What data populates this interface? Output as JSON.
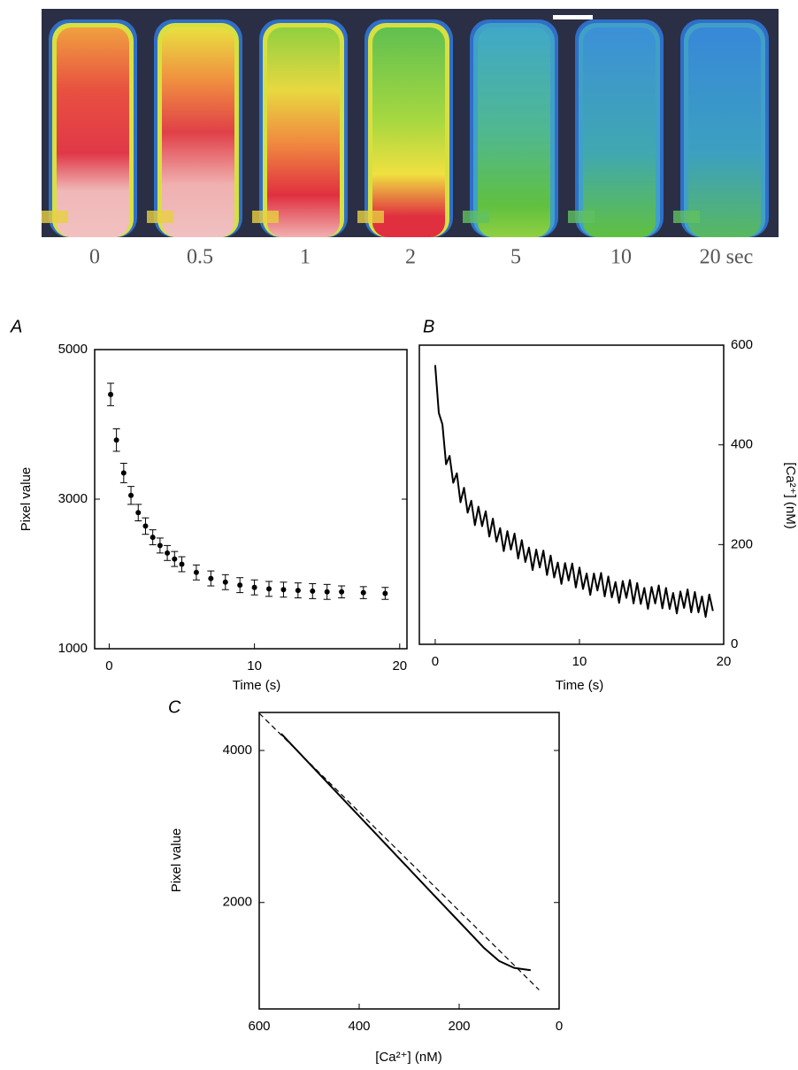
{
  "image_strip": {
    "labels": [
      "0",
      "0.5",
      "1",
      "2",
      "5",
      "10",
      "20 sec"
    ]
  },
  "chart_data": [
    {
      "type": "scatter",
      "panel": "A",
      "x_label": "Time (s)",
      "y_label": "Pixel value",
      "color": "#000000",
      "xlim": [
        -1,
        20.5
      ],
      "xticks": [
        0,
        10,
        20
      ],
      "ylim": [
        1000,
        5000
      ],
      "yticks": [
        1000,
        3000,
        5000
      ],
      "x": [
        0.1,
        0.5,
        1,
        1.5,
        2,
        2.5,
        3,
        3.5,
        4,
        4.5,
        5,
        6,
        7,
        8,
        9,
        10,
        11,
        12,
        13,
        14,
        15,
        16,
        17.5,
        19
      ],
      "values": [
        4400,
        3790,
        3350,
        3050,
        2820,
        2640,
        2490,
        2380,
        2280,
        2200,
        2130,
        2020,
        1940,
        1890,
        1850,
        1820,
        1800,
        1790,
        1780,
        1770,
        1760,
        1760,
        1750,
        1740
      ],
      "errors": [
        150,
        150,
        130,
        120,
        110,
        110,
        100,
        100,
        100,
        100,
        100,
        100,
        100,
        100,
        100,
        100,
        100,
        100,
        100,
        100,
        100,
        80,
        80,
        80
      ]
    },
    {
      "type": "line",
      "panel": "B",
      "x_label": "Time (s)",
      "y2_label": "[Ca²⁺] (nM)",
      "xlim": [
        -1.1,
        20
      ],
      "xticks": [
        0,
        10,
        20
      ],
      "y2lim": [
        0,
        600
      ],
      "y2ticks": [
        0,
        200,
        400,
        600
      ],
      "x": [
        0,
        0.25,
        0.5,
        0.75,
        1,
        1.25,
        1.5,
        1.75,
        2,
        2.25,
        2.5,
        2.75,
        3,
        3.25,
        3.5,
        3.75,
        4,
        4.25,
        4.5,
        4.75,
        5,
        5.25,
        5.5,
        5.75,
        6,
        6.25,
        6.5,
        6.75,
        7,
        7.25,
        7.5,
        7.75,
        8,
        8.25,
        8.5,
        8.75,
        9,
        9.25,
        9.5,
        9.75,
        10,
        10.25,
        10.5,
        10.75,
        11,
        11.25,
        11.5,
        11.75,
        12,
        12.25,
        12.5,
        12.75,
        13,
        13.25,
        13.5,
        13.75,
        14,
        14.25,
        14.5,
        14.75,
        15,
        15.25,
        15.5,
        15.75,
        16,
        16.25,
        16.5,
        16.75,
        17,
        17.25,
        17.5,
        17.75,
        18,
        18.25,
        18.5,
        18.75,
        19,
        19.25
      ],
      "series": [
        {
          "axis": "y2",
          "color": "#000000",
          "values": [
            560,
            464,
            441,
            361,
            378,
            324,
            343,
            285,
            314,
            264,
            288,
            239,
            276,
            237,
            267,
            216,
            252,
            206,
            233,
            187,
            227,
            190,
            222,
            172,
            209,
            165,
            194,
            149,
            190,
            154,
            188,
            139,
            178,
            134,
            164,
            121,
            163,
            128,
            162,
            114,
            154,
            111,
            142,
            99,
            142,
            108,
            143,
            96,
            136,
            94,
            125,
            83,
            127,
            93,
            129,
            82,
            123,
            81,
            113,
            71,
            115,
            82,
            118,
            72,
            113,
            71,
            103,
            62,
            106,
            73,
            110,
            64,
            105,
            64,
            96,
            55,
            100,
            67
          ]
        }
      ]
    },
    {
      "type": "line",
      "panel": "C",
      "x_label": "[Ca²⁺] (nM)",
      "y_label": "Pixel value",
      "xlim": [
        600,
        0
      ],
      "xticks": [
        600,
        400,
        200,
        0
      ],
      "ylim": [
        600,
        4500
      ],
      "yticks": [
        2000,
        4000
      ],
      "series": [
        {
          "color": "#000000",
          "dash": false,
          "x": [
            556,
            450,
            350,
            250,
            170,
            150,
            120,
            90,
            57
          ],
          "values": [
            4220,
            3483,
            2788,
            2093,
            1540,
            1400,
            1230,
            1140,
            1110
          ]
        },
        {
          "color": "#000000",
          "dash": true,
          "x": [
            600,
            40
          ],
          "values": [
            4490,
            850
          ]
        }
      ]
    }
  ]
}
